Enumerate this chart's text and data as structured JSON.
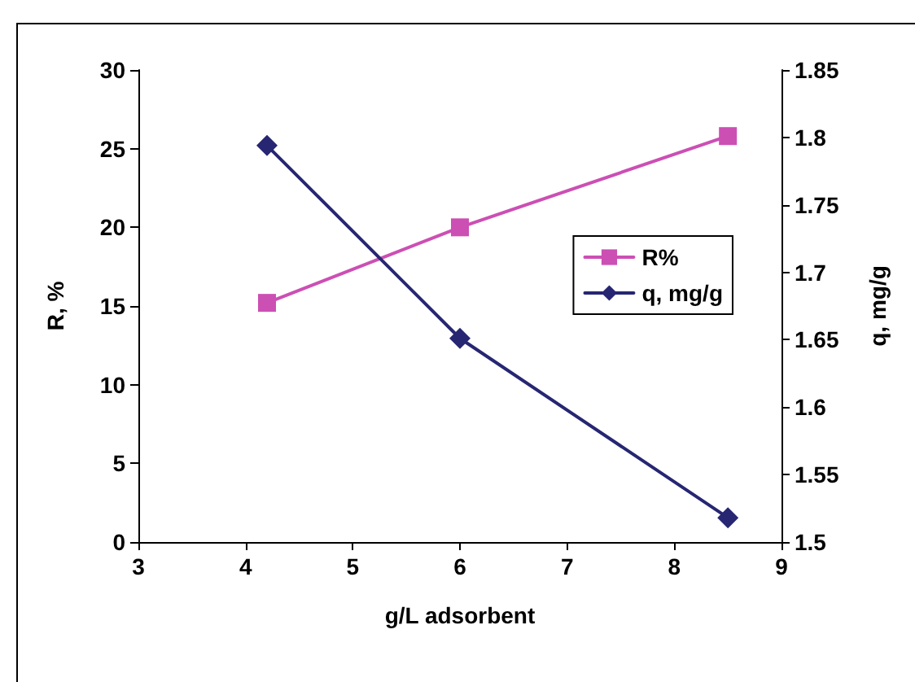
{
  "chart_data": {
    "type": "line",
    "xlabel": "g/L adsorbent",
    "ylabel": "R, %",
    "y2label": "q, mg/g",
    "x": [
      4.2,
      6,
      8.5
    ],
    "series": [
      {
        "name": "R%",
        "color": "#cc4fb4",
        "marker": "square",
        "values": [
          15.2,
          20,
          25.8
        ]
      },
      {
        "name": "q, mg/g",
        "color": "#262673",
        "marker": "diamond",
        "axis": "y2",
        "values": [
          1.794,
          1.651,
          1.518
        ]
      }
    ],
    "xlim": [
      3,
      9
    ],
    "xticks": [
      3,
      4,
      5,
      6,
      7,
      8,
      9
    ],
    "ylim": [
      0,
      30
    ],
    "yticks": [
      0,
      5,
      10,
      15,
      20,
      25,
      30
    ],
    "y2lim": [
      1.5,
      1.85
    ],
    "y2ticks": [
      1.5,
      1.55,
      1.6,
      1.65,
      1.7,
      1.75,
      1.8,
      1.85
    ],
    "grid": false,
    "legend": "right",
    "line_style": "solid"
  }
}
